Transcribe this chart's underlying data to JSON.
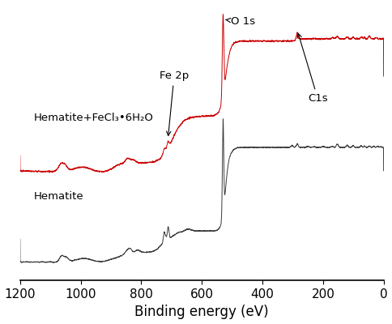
{
  "title": "",
  "xlabel": "Binding energy (eV)",
  "ylabel": "",
  "xlim": [
    1200,
    0
  ],
  "xlabel_fontsize": 12,
  "red_label": "Hematite+FeCl₃•6H₂O",
  "gray_label": "Hematite",
  "red_color": "#cc0000",
  "gray_color": "#3a3a3a",
  "tick_fontsize": 11
}
